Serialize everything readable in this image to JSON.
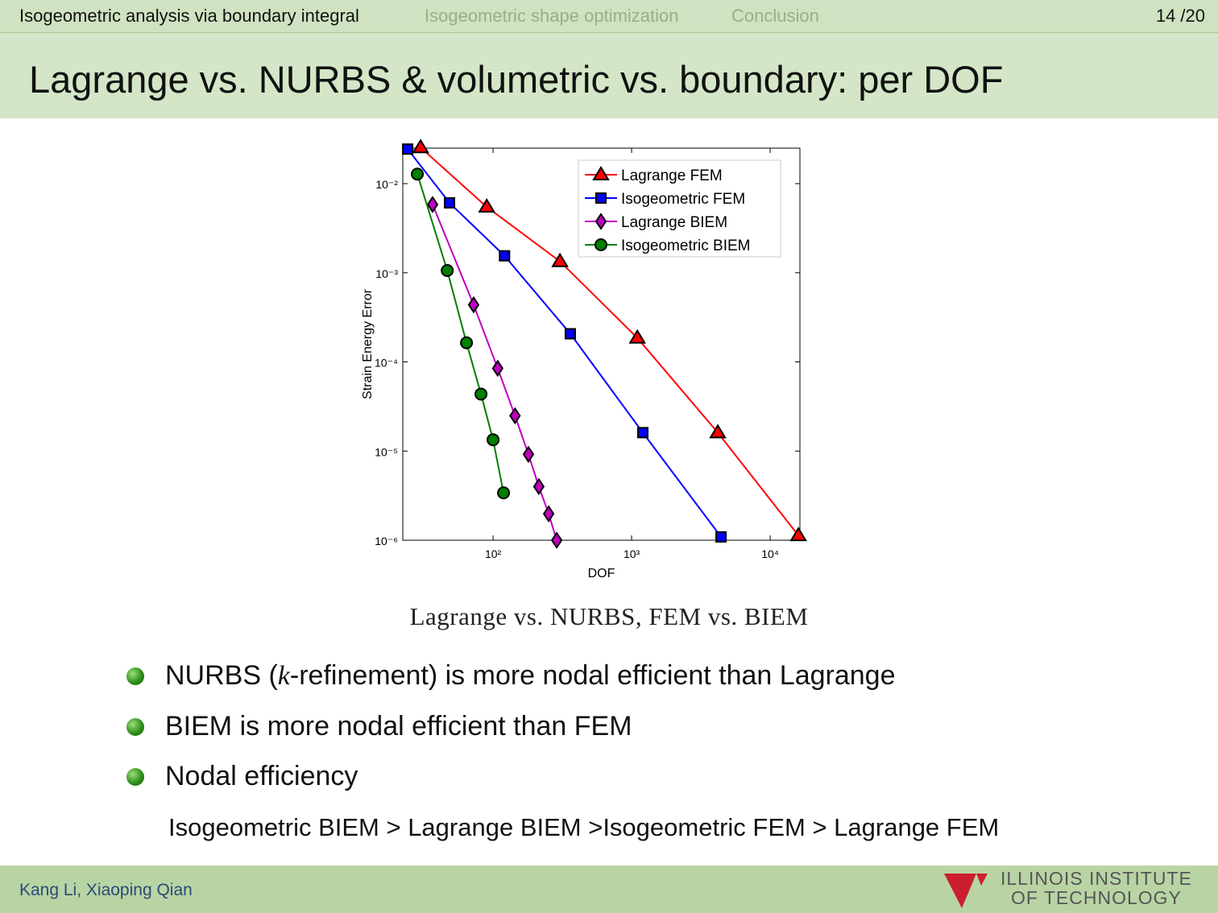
{
  "header": {
    "sections": [
      "Isogeometric analysis via boundary integral",
      "Isogeometric shape optimization",
      "Conclusion"
    ],
    "page": "14 /20"
  },
  "title": "Lagrange vs. NURBS & volumetric vs. boundary: per DOF",
  "chart_data": {
    "type": "line",
    "x_label": "DOF",
    "y_label": "Strain Energy Error",
    "log_x": true,
    "log_y": true,
    "xlim": [
      22.3,
      16400
    ],
    "ylim": [
      1e-06,
      0.025
    ],
    "xticks": [
      {
        "value": 100,
        "label": "10²"
      },
      {
        "value": 1000,
        "label": "10³"
      },
      {
        "value": 10000,
        "label": "10⁴"
      }
    ],
    "yticks": [
      {
        "value": 1e-06,
        "label": "10⁻⁶"
      },
      {
        "value": 1e-05,
        "label": "10⁻⁵"
      },
      {
        "value": 0.0001,
        "label": "10⁻⁴"
      },
      {
        "value": 0.001,
        "label": "10⁻³"
      },
      {
        "value": 0.01,
        "label": "10⁻²"
      }
    ],
    "series": [
      {
        "name": "Lagrange FEM",
        "color": "#ff0000",
        "marker": "triangle",
        "x": [
          30,
          90,
          304,
          1100,
          4190,
          16000
        ],
        "values": [
          0.0254,
          0.00548,
          0.00134,
          0.000186,
          1.61e-05,
          1.13e-06
        ]
      },
      {
        "name": "Isogeometric FEM",
        "color": "#0000ff",
        "marker": "square",
        "x": [
          24.2,
          48.5,
          121,
          361,
          1205,
          4420
        ],
        "values": [
          0.0244,
          0.00608,
          0.00155,
          0.000207,
          1.61e-05,
          1.09e-06
        ]
      },
      {
        "name": "Lagrange BIEM",
        "color": "#bf00bf",
        "marker": "diamond",
        "x": [
          36.6,
          72.4,
          108,
          144,
          180,
          214,
          252,
          288
        ],
        "values": [
          0.00583,
          0.000437,
          8.48e-05,
          2.49e-05,
          9.2e-06,
          4e-06,
          1.98e-06,
          1e-06
        ]
      },
      {
        "name": "Isogeometric BIEM",
        "color": "#007f00",
        "marker": "circle",
        "x": [
          28.4,
          46.7,
          64.3,
          81.8,
          100,
          119
        ],
        "values": [
          0.0128,
          0.00106,
          0.000164,
          4.36e-05,
          1.34e-05,
          3.4e-06
        ]
      }
    ],
    "legend": "upper right"
  },
  "caption": "Lagrange vs. NURBS, FEM vs. BIEM",
  "bullets": [
    [
      "NURBS (",
      "k",
      "-refinement) is more nodal efficient than Lagrange"
    ],
    [
      "BIEM is more nodal efficient than FEM"
    ],
    [
      "Nodal efficiency"
    ]
  ],
  "ranking": "Isogeometric BIEM > Lagrange BIEM >Isogeometric FEM > Lagrange FEM",
  "footer": {
    "authors": "Kang Li, Xiaoping Qian",
    "logo": [
      "ILLINOIS INSTITUTE",
      "OF TECHNOLOGY"
    ]
  }
}
